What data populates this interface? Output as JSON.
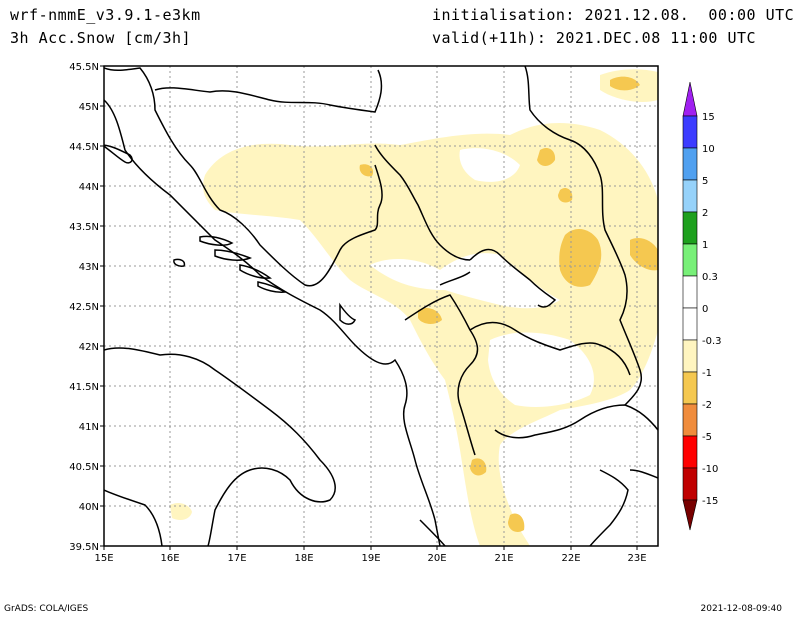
{
  "header": {
    "model": "wrf-nmmE_v3.9.1-e3km",
    "field": "3h Acc.Snow [cm/3h]",
    "init": "initialisation: 2021.12.08.  00:00 UTC",
    "valid": "valid(+11h): 2021.DEC.08 11:00 UTC"
  },
  "map": {
    "lat_labels": [
      "45.5N",
      "45N",
      "44.5N",
      "44N",
      "43.5N",
      "43N",
      "42.5N",
      "42N",
      "41.5N",
      "41N",
      "40.5N",
      "40N",
      "39.5N"
    ],
    "lon_labels": [
      "15E",
      "16E",
      "17E",
      "18E",
      "19E",
      "20E",
      "21E",
      "22E",
      "23E"
    ],
    "lat_range": [
      39.5,
      45.5
    ],
    "lon_range": [
      15,
      23.3
    ],
    "grid": true
  },
  "colorbar": {
    "labels": [
      "15",
      "10",
      "5",
      "2",
      "1",
      "0.3",
      "0",
      "-0.3",
      "-1",
      "-2",
      "-5",
      "-10",
      "-15"
    ],
    "colors": [
      "#a020f0",
      "#3c3cff",
      "#50a0f0",
      "#96d2fa",
      "#1ea01e",
      "#78f078",
      "#ffffff",
      "#ffffff",
      "#fff5c0",
      "#f5c850",
      "#f08c3c",
      "#ff0000",
      "#c00000",
      "#960000",
      "#780000"
    ]
  },
  "footer": {
    "left": "GrADS: COLA/IGES",
    "right": "2021-12-08-09:40"
  }
}
